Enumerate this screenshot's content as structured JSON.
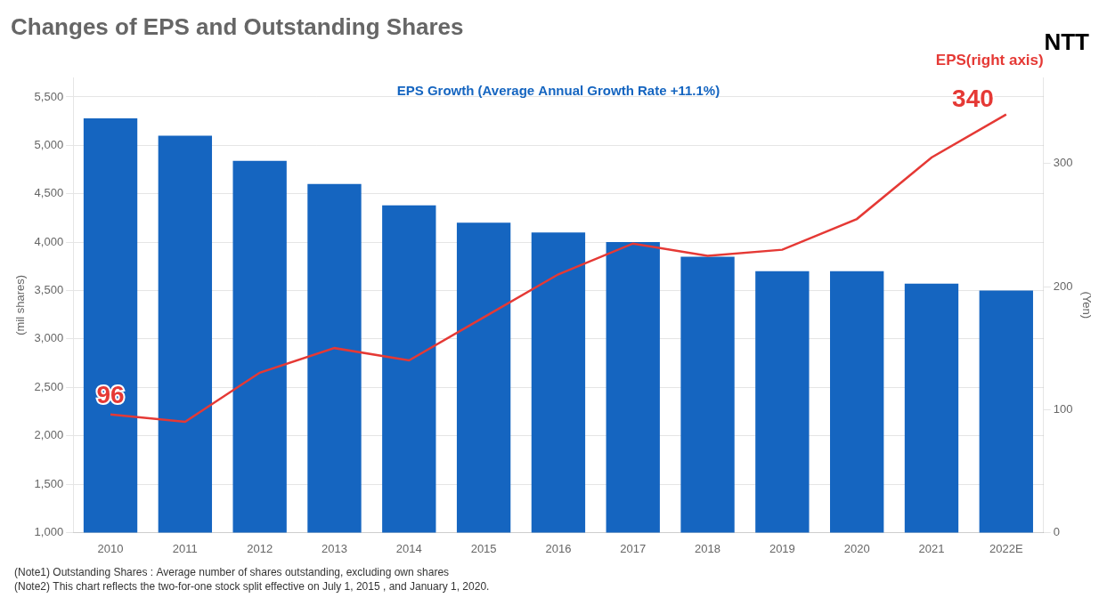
{
  "chart_data": {
    "type": "bar",
    "title": "Changes of EPS and Outstanding Shares",
    "categories": [
      "2010",
      "2011",
      "2012",
      "2013",
      "2014",
      "2015",
      "2016",
      "2017",
      "2018",
      "2019",
      "2020",
      "2021",
      "2022E"
    ],
    "series": [
      {
        "type": "bar",
        "color": "#1565C0",
        "values": [
          5280,
          5100,
          4840,
          4600,
          4380,
          4200,
          4100,
          4000,
          3850,
          3700,
          3700,
          3570,
          3500
        ]
      },
      {
        "type": "line",
        "axis": "y2",
        "color": "#e53935",
        "values": [
          96,
          90,
          130,
          150,
          140,
          175,
          210,
          235,
          225,
          230,
          255,
          305,
          340
        ]
      }
    ],
    "ylabel": "(mil shares)",
    "y2label": "(Yen)",
    "ylim": [
      1000,
      5700
    ],
    "yticks": [
      {
        "value": 1000,
        "label": "1,000"
      },
      {
        "value": 1500,
        "label": "1,500"
      },
      {
        "value": 2000,
        "label": "2,000"
      },
      {
        "value": 2500,
        "label": "2,500"
      },
      {
        "value": 3000,
        "label": "3,000"
      },
      {
        "value": 3500,
        "label": "3,500"
      },
      {
        "value": 4000,
        "label": "4,000"
      },
      {
        "value": 4500,
        "label": "4,500"
      },
      {
        "value": 5000,
        "label": "5,000"
      },
      {
        "value": 5500,
        "label": "5,500"
      }
    ],
    "y2lim": [
      0,
      370
    ],
    "y2ticks": [
      0,
      100,
      200,
      300
    ],
    "grid": true,
    "annotations": [
      {
        "text": "96",
        "series": 1,
        "index": 0
      },
      {
        "text": "340",
        "series": 1,
        "index": 12
      },
      {
        "text": "EPS Growth (Average Annual Growth Rate +11.1%)"
      },
      {
        "text": "EPS(right axis)",
        "series": 1
      }
    ],
    "logo_text": "NTT",
    "notes": [
      "(Note1) Outstanding Shares : Average number of shares outstanding, excluding own shares",
      "(Note2) This chart reflects the two-for-one stock split effective on July 1, 2015 , and January 1, 2020."
    ]
  }
}
